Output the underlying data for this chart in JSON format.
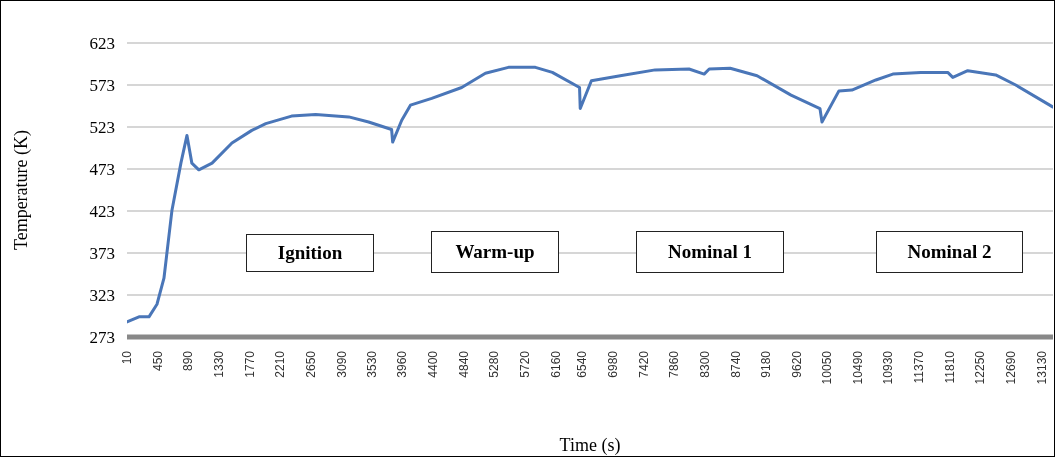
{
  "chart_data": {
    "type": "line",
    "xlabel": "Time (s)",
    "ylabel": "Temperature (K)",
    "annotations": [
      "Ignition",
      "Warm-up",
      "Nominal 1",
      "Nominal 2"
    ],
    "x": [
      10,
      182,
      325,
      440,
      540,
      655,
      783,
      870,
      940,
      1040,
      1230,
      1515,
      1800,
      2000,
      2370,
      2715,
      3190,
      3475,
      3805,
      3820,
      3950,
      4075,
      4380,
      4810,
      5150,
      5480,
      5620,
      5867,
      6110,
      6500,
      6510,
      6670,
      7084,
      7585,
      8070,
      8287,
      8360,
      8660,
      9046,
      9533,
      9948,
      9977,
      10220,
      10406,
      10750,
      10993,
      11394,
      11780,
      11853,
      12067,
      12468,
      12755,
      13285
    ],
    "series": [
      {
        "color": "#4a76b8",
        "values": [
          291,
          297,
          297,
          312,
          343,
          424,
          480,
          513,
          480,
          472,
          480,
          504,
          519,
          527,
          536,
          538,
          535,
          529,
          520,
          505,
          531,
          549,
          557,
          570,
          587,
          594,
          594,
          594,
          588,
          570,
          545,
          578,
          584,
          591,
          592,
          586,
          592,
          593,
          584,
          561,
          545,
          529,
          566,
          567,
          579,
          586,
          588,
          588,
          582,
          590,
          585,
          573,
          547
        ]
      }
    ],
    "xlim": [
      10,
      13290
    ],
    "xticks": [
      10,
      450,
      890,
      1330,
      1770,
      2210,
      2650,
      3090,
      3530,
      3960,
      4400,
      4840,
      5280,
      5720,
      6160,
      6540,
      6980,
      7420,
      7860,
      8300,
      8740,
      9180,
      9620,
      10050,
      10490,
      10930,
      11370,
      11810,
      12250,
      12690,
      13130
    ],
    "ylim": [
      273,
      623
    ],
    "yticks": [
      273,
      323,
      373,
      423,
      473,
      523,
      573,
      623
    ],
    "grid": "y",
    "legend": false,
    "marker": "none",
    "line_style": "solid"
  }
}
